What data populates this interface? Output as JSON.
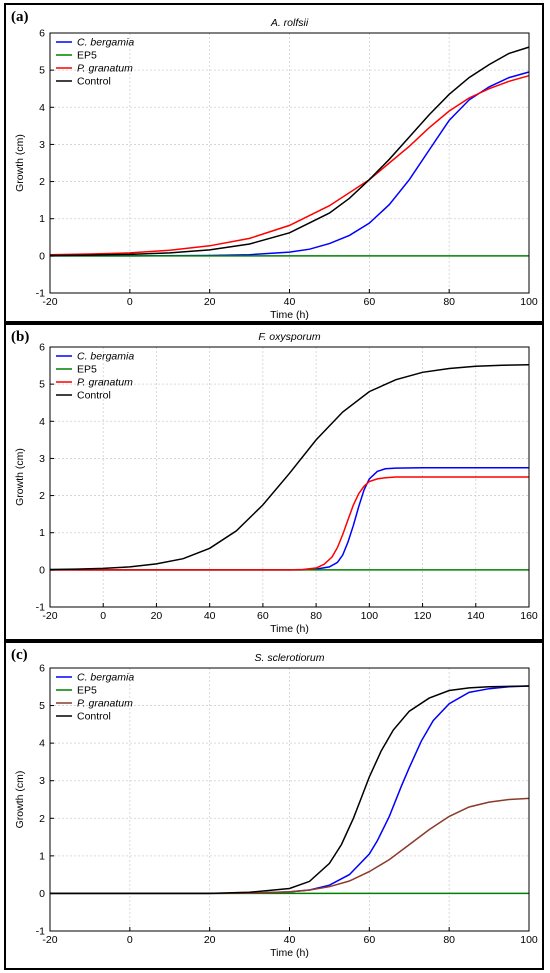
{
  "chart_data": [
    {
      "type": "line",
      "panel_label": "(a)",
      "title": "A. rolfsii",
      "xlabel": "Time (h)",
      "ylabel": "Growth (cm)",
      "xlim": [
        -20,
        100
      ],
      "ylim": [
        -1,
        6
      ],
      "xticks": [
        -20,
        0,
        20,
        40,
        60,
        80,
        100
      ],
      "yticks": [
        -1,
        0,
        1,
        2,
        3,
        4,
        5,
        6
      ],
      "grid": true,
      "legend_position": "top-left",
      "series": [
        {
          "name": "C. bergamia",
          "italic": true,
          "color": "#0000ff",
          "x": [
            -20,
            0,
            20,
            30,
            40,
            45,
            50,
            55,
            60,
            65,
            70,
            75,
            80,
            85,
            90,
            95,
            100
          ],
          "y": [
            0,
            0,
            0.01,
            0.03,
            0.1,
            0.18,
            0.33,
            0.55,
            0.88,
            1.38,
            2.05,
            2.85,
            3.65,
            4.2,
            4.55,
            4.8,
            4.95
          ]
        },
        {
          "name": "EP5",
          "italic": false,
          "color": "#008000",
          "x": [
            -20,
            100
          ],
          "y": [
            0,
            0
          ]
        },
        {
          "name": "P. granatum",
          "italic": true,
          "color": "#ff0000",
          "x": [
            -20,
            -10,
            0,
            10,
            20,
            30,
            40,
            50,
            60,
            65,
            70,
            75,
            80,
            85,
            90,
            95,
            100
          ],
          "y": [
            0.03,
            0.05,
            0.08,
            0.15,
            0.27,
            0.47,
            0.82,
            1.35,
            2.05,
            2.5,
            2.95,
            3.45,
            3.9,
            4.25,
            4.5,
            4.7,
            4.85
          ]
        },
        {
          "name": "Control",
          "italic": false,
          "color": "#000000",
          "x": [
            -20,
            -10,
            0,
            10,
            20,
            30,
            40,
            50,
            55,
            60,
            65,
            70,
            75,
            80,
            85,
            90,
            95,
            100
          ],
          "y": [
            0.01,
            0.02,
            0.04,
            0.08,
            0.16,
            0.32,
            0.62,
            1.15,
            1.55,
            2.05,
            2.6,
            3.2,
            3.8,
            4.35,
            4.8,
            5.15,
            5.45,
            5.62
          ]
        }
      ]
    },
    {
      "type": "line",
      "panel_label": "(b)",
      "title": "F. oxysporum",
      "xlabel": "Time (h)",
      "ylabel": "Growth (cm)",
      "xlim": [
        -20,
        160
      ],
      "ylim": [
        -1,
        6
      ],
      "xticks": [
        -20,
        0,
        20,
        40,
        60,
        80,
        100,
        120,
        140,
        160
      ],
      "yticks": [
        -1,
        0,
        1,
        2,
        3,
        4,
        5,
        6
      ],
      "grid": true,
      "legend_position": "top-left",
      "series": [
        {
          "name": "C. bergamia",
          "italic": true,
          "color": "#0000ff",
          "x": [
            -20,
            75,
            80,
            85,
            88,
            90,
            92,
            94,
            96,
            98,
            100,
            103,
            106,
            110,
            120,
            160
          ],
          "y": [
            0,
            0,
            0.02,
            0.08,
            0.2,
            0.4,
            0.75,
            1.2,
            1.7,
            2.15,
            2.45,
            2.65,
            2.72,
            2.74,
            2.75,
            2.75
          ]
        },
        {
          "name": "EP5",
          "italic": false,
          "color": "#008000",
          "x": [
            -20,
            160
          ],
          "y": [
            0,
            0
          ]
        },
        {
          "name": "P. granatum",
          "italic": true,
          "color": "#ff0000",
          "x": [
            -20,
            70,
            75,
            80,
            83,
            86,
            88,
            90,
            92,
            94,
            96,
            98,
            100,
            103,
            106,
            110,
            120,
            160
          ],
          "y": [
            0,
            0,
            0.01,
            0.05,
            0.15,
            0.35,
            0.6,
            0.95,
            1.35,
            1.75,
            2.05,
            2.25,
            2.38,
            2.45,
            2.48,
            2.5,
            2.5,
            2.5
          ]
        },
        {
          "name": "Control",
          "italic": false,
          "color": "#000000",
          "x": [
            -20,
            -10,
            0,
            10,
            20,
            30,
            40,
            50,
            60,
            70,
            80,
            90,
            100,
            110,
            120,
            130,
            140,
            150,
            160
          ],
          "y": [
            0.01,
            0.02,
            0.04,
            0.08,
            0.16,
            0.3,
            0.58,
            1.05,
            1.75,
            2.6,
            3.5,
            4.25,
            4.8,
            5.12,
            5.32,
            5.42,
            5.48,
            5.51,
            5.52
          ]
        }
      ]
    },
    {
      "type": "line",
      "panel_label": "(c)",
      "title": "S. sclerotiorum",
      "xlabel": "Time (h)",
      "ylabel": "Growth (cm)",
      "xlim": [
        -20,
        100
      ],
      "ylim": [
        -1,
        6
      ],
      "xticks": [
        -20,
        0,
        20,
        40,
        60,
        80,
        100
      ],
      "yticks": [
        -1,
        0,
        1,
        2,
        3,
        4,
        5,
        6
      ],
      "grid": true,
      "legend_position": "top-left",
      "series": [
        {
          "name": "C. bergamia",
          "italic": true,
          "color": "#0000ff",
          "x": [
            -20,
            20,
            30,
            40,
            45,
            50,
            55,
            60,
            62,
            65,
            68,
            70,
            73,
            76,
            80,
            85,
            90,
            95,
            100
          ],
          "y": [
            0,
            0,
            0.01,
            0.04,
            0.09,
            0.22,
            0.5,
            1.05,
            1.4,
            2.05,
            2.85,
            3.35,
            4.05,
            4.6,
            5.05,
            5.35,
            5.45,
            5.5,
            5.52
          ]
        },
        {
          "name": "EP5",
          "italic": false,
          "color": "#008000",
          "x": [
            -20,
            100
          ],
          "y": [
            0,
            0
          ]
        },
        {
          "name": "P. granatum",
          "italic": true,
          "color": "#8b3a2a",
          "x": [
            -20,
            20,
            30,
            40,
            45,
            50,
            55,
            60,
            65,
            70,
            75,
            80,
            85,
            90,
            95,
            100
          ],
          "y": [
            0,
            0,
            0.01,
            0.04,
            0.09,
            0.18,
            0.33,
            0.58,
            0.9,
            1.3,
            1.7,
            2.05,
            2.3,
            2.43,
            2.5,
            2.53
          ]
        },
        {
          "name": "Control",
          "italic": false,
          "color": "#000000",
          "x": [
            -20,
            20,
            30,
            40,
            45,
            50,
            53,
            56,
            58,
            60,
            63,
            66,
            70,
            75,
            80,
            85,
            90,
            100
          ],
          "y": [
            0,
            0,
            0.03,
            0.13,
            0.32,
            0.8,
            1.3,
            2.0,
            2.55,
            3.1,
            3.8,
            4.35,
            4.85,
            5.2,
            5.4,
            5.47,
            5.5,
            5.52
          ]
        }
      ]
    }
  ]
}
